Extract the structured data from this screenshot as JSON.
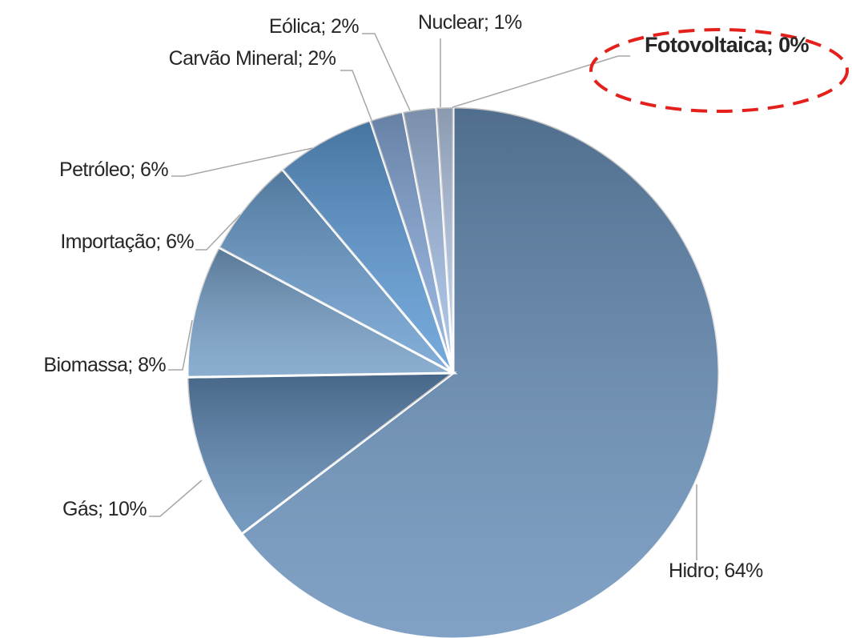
{
  "chart_data": {
    "type": "pie",
    "values": [
      64,
      10,
      8,
      6,
      6,
      2,
      2,
      1,
      0
    ],
    "value_labels": [
      "Hidro; 64%",
      "Gás; 10%",
      "Biomassa; 8%",
      "Importação; 6%",
      "Petróleo; 6%",
      "Carvão Mineral; 2%",
      "Eólica; 2%",
      "Nuclear; 1%",
      "Fotovoltaica; 0%"
    ],
    "colors": [
      "#6a91bb",
      "#5f89b5",
      "#77a0c8",
      "#6c9fd0",
      "#5e9bd6",
      "#88abdc",
      "#a3bee4",
      "#b9ccea",
      "#c8d7ef"
    ]
  }
}
